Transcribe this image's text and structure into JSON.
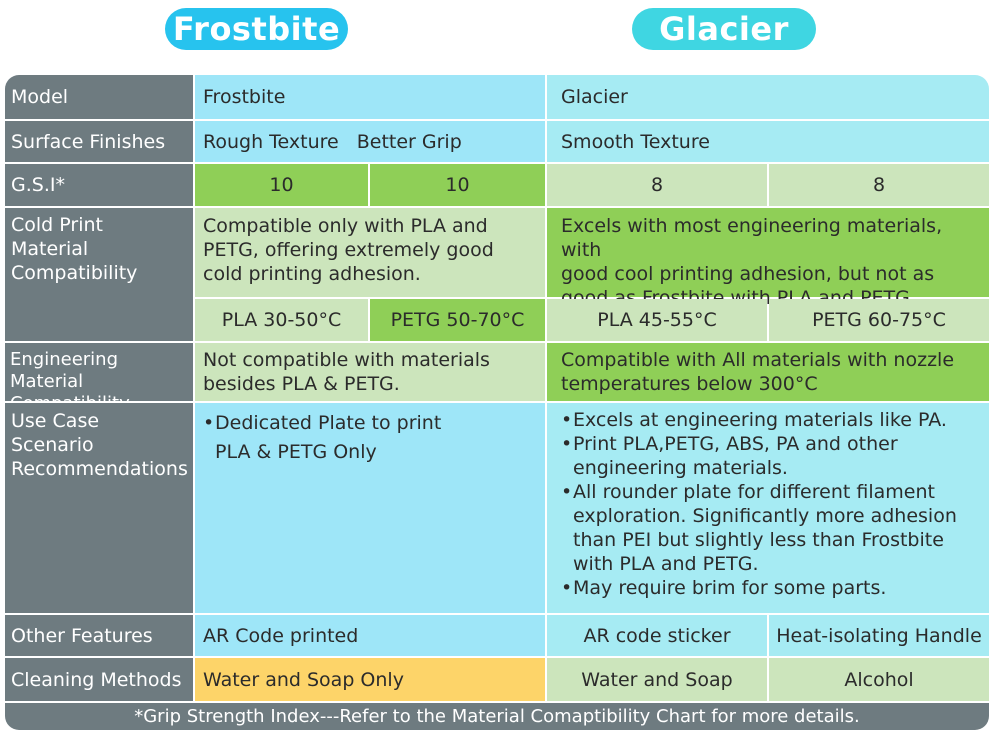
{
  "header": {
    "left_title": "Frostbite",
    "right_title": "Glacier"
  },
  "rows": {
    "model": {
      "label": "Model",
      "frostbite": "Frostbite",
      "glacier": "Glacier"
    },
    "surface": {
      "label": "Surface Finishes",
      "frostbite_1": "Rough Texture",
      "frostbite_2": "Better Grip",
      "glacier": "Smooth Texture"
    },
    "gsi": {
      "label": "G.S.I*",
      "frostbite": [
        "10",
        "10"
      ],
      "glacier": [
        "8",
        "8"
      ]
    },
    "cold": {
      "label_lines": [
        "Cold Print",
        "Material",
        "Compatibility"
      ],
      "frostbite_lines": [
        "Compatible only with PLA and",
        "PETG, offering extremely good",
        "cold printing adhesion."
      ],
      "glacier_lines": [
        "Excels with most engineering materials, with",
        "good cool printing adhesion, but not as",
        "good as Frostbite with PLA and PETG."
      ],
      "temps": [
        "PLA 30-50°C",
        "PETG 50-70°C",
        "PLA 45-55°C",
        "PETG 60-75°C"
      ]
    },
    "engineering": {
      "label_lines": [
        "Engineering Material",
        "Compatibility"
      ],
      "frostbite_lines": [
        "Not compatible with materials",
        "besides PLA & PETG."
      ],
      "glacier_lines": [
        "Compatible with All materials with nozzle",
        "temperatures below 300°C"
      ]
    },
    "use_case": {
      "label_lines": [
        "Use Case Scenario",
        "Recommendations"
      ],
      "frostbite_bullet_lines": [
        "Dedicated Plate to print",
        "PLA & PETG Only"
      ],
      "glacier_bullets": [
        [
          "Excels at engineering materials like PA."
        ],
        [
          "Print PLA,PETG, ABS, PA and other",
          "engineering materials."
        ],
        [
          "All rounder plate for different filament",
          "exploration. Significantly more adhesion",
          "than PEI but slightly less than Frostbite",
          "with PLA and PETG."
        ],
        [
          "May require brim for some parts."
        ]
      ]
    },
    "other": {
      "label": "Other Features",
      "frostbite": "AR Code printed",
      "glacier_1": "AR code sticker",
      "glacier_2": "Heat-isolating Handle"
    },
    "cleaning": {
      "label": "Cleaning Methods",
      "frostbite": "Water and Soap Only",
      "glacier_1": "Water and Soap",
      "glacier_2": "Alcohol"
    }
  },
  "footer": "*Grip Strength Index---Refer to the Material Comaptibility Chart for more details.",
  "colors": {
    "frostbite_pill": "#27c3ee",
    "glacier_pill": "#3fd6e2",
    "header_gray": "#6e7b80",
    "light_blue": "#9ee6f8",
    "green": "#8fcf57",
    "light_green": "#cce5bc",
    "orange": "#fdd469"
  }
}
